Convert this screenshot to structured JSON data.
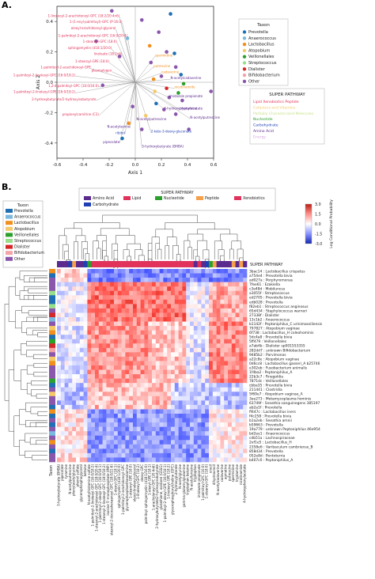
{
  "panels": {
    "a": "A.",
    "b": "B."
  },
  "chart_data": [
    {
      "type": "scatter",
      "subtype": "biplot",
      "xlabel": "Axis 1",
      "ylabel": "Axis 2",
      "xlim": [
        -0.6,
        0.6
      ],
      "ylim": [
        -0.5,
        0.5
      ],
      "xticks": [
        "-0.6",
        "-0.4",
        "-0.2",
        "0.0",
        "0.2",
        "0.4",
        "0.6"
      ],
      "yticks": [
        "0.4",
        "0.2",
        "0.0",
        "-0.2",
        "-0.4"
      ],
      "grid": false,
      "legend_taxon": {
        "title": "Taxon",
        "items": [
          {
            "label": "Prevotella",
            "color": "#1f6fb4"
          },
          {
            "label": "Anaerococcus",
            "color": "#7ab8e0"
          },
          {
            "label": "Lactobacillus",
            "color": "#f28e1c"
          },
          {
            "label": "Atopobium",
            "color": "#f5c96a"
          },
          {
            "label": "Veillonellales",
            "color": "#2ca02c"
          },
          {
            "label": "Streptococcus",
            "color": "#98df8a"
          },
          {
            "label": "Dialister",
            "color": "#d62728"
          },
          {
            "label": "Bifidobacterium",
            "color": "#f4a3a8"
          },
          {
            "label": "Other",
            "color": "#8a56ac"
          }
        ]
      },
      "legend_pathway": {
        "title": "SUPER PATHWAY",
        "items": [
          {
            "label": "Lipid Xenobiotics Peptide",
            "color": "#e0325a"
          },
          {
            "label": "Cofactors and Vitamins",
            "color": "#f5c96a"
          },
          {
            "label": "Partially Characterized Molecules",
            "color": "#c8e08a"
          },
          {
            "label": "Nucleotide",
            "color": "#2ca02c"
          },
          {
            "label": "Carbohydrate",
            "color": "#1f3fb4"
          },
          {
            "label": "Amino Acid",
            "color": "#5b2a8e"
          },
          {
            "label": "Energy",
            "color": "#d6a3e0"
          }
        ]
      },
      "points": [
        {
          "x": -0.18,
          "y": 0.47,
          "taxon": "Other"
        },
        {
          "x": 0.05,
          "y": 0.41,
          "taxon": "Other"
        },
        {
          "x": 0.27,
          "y": 0.45,
          "taxon": "Prevotella"
        },
        {
          "x": 0.18,
          "y": 0.33,
          "taxon": "Other"
        },
        {
          "x": 0.11,
          "y": 0.24,
          "taxon": "Lactobacillus"
        },
        {
          "x": 0.24,
          "y": 0.2,
          "taxon": "Other"
        },
        {
          "x": 0.3,
          "y": 0.19,
          "taxon": "Prevotella"
        },
        {
          "x": -0.06,
          "y": 0.29,
          "taxon": "Anaerococcus"
        },
        {
          "x": 0.12,
          "y": 0.13,
          "taxon": "Other"
        },
        {
          "x": 0.31,
          "y": 0.1,
          "taxon": "Other"
        },
        {
          "x": 0.35,
          "y": 0.05,
          "taxon": "Prevotella"
        },
        {
          "x": 0.2,
          "y": 0.04,
          "taxon": "Other"
        },
        {
          "x": 0.37,
          "y": -0.01,
          "taxon": "Veillonellales"
        },
        {
          "x": 0.24,
          "y": -0.04,
          "taxon": "Dialister"
        },
        {
          "x": 0.33,
          "y": -0.07,
          "taxon": "Veillonellales"
        },
        {
          "x": 0.15,
          "y": -0.06,
          "taxon": "Atopobium"
        },
        {
          "x": 0.26,
          "y": -0.1,
          "taxon": "Other"
        },
        {
          "x": 0.36,
          "y": -0.12,
          "taxon": "Other"
        },
        {
          "x": 0.16,
          "y": -0.14,
          "taxon": "Prevotella"
        },
        {
          "x": 0.22,
          "y": -0.18,
          "taxon": "Other"
        },
        {
          "x": 0.31,
          "y": -0.21,
          "taxon": "Other"
        },
        {
          "x": -0.02,
          "y": -0.16,
          "taxon": "Other"
        },
        {
          "x": 0.08,
          "y": -0.22,
          "taxon": "Atopobium"
        },
        {
          "x": -0.05,
          "y": -0.27,
          "taxon": "Lactobacillus"
        },
        {
          "x": 0.05,
          "y": -0.31,
          "taxon": "Other"
        },
        {
          "x": -0.1,
          "y": -0.37,
          "taxon": "Prevotella"
        },
        {
          "x": 0.58,
          "y": -0.06,
          "taxon": "Other"
        },
        {
          "x": 0.41,
          "y": -0.31,
          "taxon": "Other"
        },
        {
          "x": -0.3,
          "y": 0.27,
          "taxon": "Other"
        },
        {
          "x": -0.12,
          "y": 0.17,
          "taxon": "Other"
        },
        {
          "x": 0.14,
          "y": 0.02,
          "taxon": "Lactobacillus"
        },
        {
          "x": -0.25,
          "y": -0.02,
          "taxon": "Other"
        }
      ],
      "vector_labels": [
        {
          "x": -0.12,
          "y": 0.43,
          "label": "1-linoleoyl-2-arachidonoyl-GPC (18:2/20:4n6)",
          "color": "#e0325a"
        },
        {
          "x": -0.1,
          "y": 0.39,
          "label": "1-(1-enyl-palmitoyl)-GPC (P-16:0)",
          "color": "#e0325a"
        },
        {
          "x": -0.15,
          "y": 0.35,
          "label": "oleoyl-arachidonoyl-glycerol",
          "color": "#e0325a"
        },
        {
          "x": -0.06,
          "y": 0.3,
          "label": "1-palmitoyl-2-arachidonoyl-GPC (16:0/20:4)",
          "color": "#e0325a"
        },
        {
          "x": -0.14,
          "y": 0.26,
          "label": "1-stearoyl-GPC (18:0)",
          "color": "#e0325a"
        },
        {
          "x": -0.18,
          "y": 0.22,
          "label": "sphingomyelin (d18:1/20:0)",
          "color": "#e0325a"
        },
        {
          "x": -0.1,
          "y": 0.18,
          "label": "linoleate (18:2n6)",
          "color": "#e0325a"
        },
        {
          "x": -0.2,
          "y": 0.13,
          "label": "1-stearoyl-GPE (18:0)",
          "color": "#e0325a"
        },
        {
          "x": -0.34,
          "y": 0.09,
          "label": "1-palmitoyl-2-arachidonoyl-GPE",
          "color": "#e0325a"
        },
        {
          "x": -0.46,
          "y": 0.04,
          "label": "1-palmitoyl-2-linoleoyl-GPC (16:0/18:2)",
          "color": "#e0325a"
        },
        {
          "x": -0.18,
          "y": 0.07,
          "label": "plasmalogen",
          "color": "#e0325a"
        },
        {
          "x": -0.28,
          "y": -0.03,
          "label": "1,2-dipalmitoyl-GPC (16:0/16:0)",
          "color": "#e0325a"
        },
        {
          "x": -0.46,
          "y": -0.07,
          "label": "1-palmitoyl-2-linoleoyl-GPE (16:0/18:2)",
          "color": "#e0325a"
        },
        {
          "x": -0.3,
          "y": -0.12,
          "label": "2-hydroxybutyrate/2-hydroxyisobutyrate",
          "color": "#e0325a"
        },
        {
          "x": -0.28,
          "y": -0.22,
          "label": "propionylcarnitine (C3)",
          "color": "#e0325a"
        },
        {
          "x": 0.15,
          "y": 0.17,
          "label": "spermidine",
          "color": "#f28e1c"
        },
        {
          "x": 0.14,
          "y": 0.1,
          "label": "putrescine",
          "color": "#f28e1c"
        },
        {
          "x": 0.2,
          "y": 0.06,
          "label": "cadaverine",
          "color": "#f28e1c"
        },
        {
          "x": 0.27,
          "y": 0.02,
          "label": "N-acetylcadaverine",
          "color": "#5b2a8e"
        },
        {
          "x": 0.26,
          "y": -0.1,
          "label": "imidazole propionate",
          "color": "#5b2a8e"
        },
        {
          "x": 0.3,
          "y": -0.04,
          "label": "nicotinamide",
          "color": "#f28e1c"
        },
        {
          "x": 0.34,
          "y": -0.18,
          "label": "tryptamine",
          "color": "#5b2a8e"
        },
        {
          "x": 0.22,
          "y": -0.18,
          "label": "4-hydroxyphenylacetate",
          "color": "#5b2a8e"
        },
        {
          "x": 0.01,
          "y": -0.25,
          "label": "N-acetylputrescine",
          "color": "#5b2a8e"
        },
        {
          "x": -0.04,
          "y": -0.3,
          "label": "N-acetylserine",
          "color": "#5b2a8e"
        },
        {
          "x": -0.08,
          "y": -0.34,
          "label": "ribitol",
          "color": "#1f3fb4"
        },
        {
          "x": -0.12,
          "y": -0.4,
          "label": "pipecolate",
          "color": "#5b2a8e"
        },
        {
          "x": 0.05,
          "y": -0.43,
          "label": "3-hydroxybutyrate (BHBA)",
          "color": "#5b2a8e"
        },
        {
          "x": 0.42,
          "y": -0.24,
          "label": "N-acetylputrescine",
          "color": "#5b2a8e"
        },
        {
          "x": 0.12,
          "y": -0.33,
          "label": "2-keto-3-deoxy-gluconate",
          "color": "#1f3fb4"
        }
      ]
    },
    {
      "type": "heatmap",
      "super_pathway_title": "SUPER PATHWAY",
      "super_pathway_legend": [
        {
          "label": "Amino Acid",
          "color": "#5b2a8e"
        },
        {
          "label": "Carbohydrate",
          "color": "#1f3fb4"
        },
        {
          "label": "Lipid",
          "color": "#e0325a"
        },
        {
          "label": "Nucleotide",
          "color": "#2ca02c"
        },
        {
          "label": "Peptide",
          "color": "#f5a04a"
        },
        {
          "label": "Xenobiotics",
          "color": "#e0325a"
        }
      ],
      "taxon_legend": {
        "title": "Taxon",
        "items": [
          {
            "label": "Prevotella",
            "color": "#1f6fb4"
          },
          {
            "label": "Anaerococcus",
            "color": "#7ab8e0"
          },
          {
            "label": "Lactobacillus",
            "color": "#f28e1c"
          },
          {
            "label": "Atopobium",
            "color": "#f5c96a"
          },
          {
            "label": "Veillonellales",
            "color": "#2ca02c"
          },
          {
            "label": "Streptococcus",
            "color": "#98df8a"
          },
          {
            "label": "Dialister",
            "color": "#d62728"
          },
          {
            "label": "Bifidobacterium",
            "color": "#f4a3a8"
          },
          {
            "label": "Other",
            "color": "#8a56ac"
          }
        ]
      },
      "colorbar": {
        "label": "Log Conditional Probability",
        "ticks": [
          "3.0",
          "1.5",
          "0.0",
          "-1.5",
          "-3.0"
        ],
        "min": -3.0,
        "max": 3.0
      },
      "row_label_axis": "SUPER PATHWAY",
      "side_label": "Taxon",
      "rows": [
        "3bac14 : Lactobacillus crispatus",
        "a754e4 : Prevotella bivia",
        "ad027a : Porphyromonas",
        "7fee61 : Ezakiella",
        "c3e48d : Mobiluncus",
        "a3055f : Streptococcus",
        "ed2705 : Prevotella bivia",
        "edb028 : Prevotella",
        "f82eb1 : Streptococcus anginosus",
        "65d434 : Staphylococcus warneri",
        "27338f : Dialister",
        "13c1b2 : Anaerococcus",
        "b1142f : Peptoniphilus_C urinimassiliensis",
        "797827 : Atopobium vaginae",
        "6f738 : Lactobacillus_H coleohominis",
        "5dc4a8 : Prevotella bivia",
        "5ff479 : Veillonellales",
        "a7ab4b : Dialister sp001553355",
        "282dd7 : unknown Bifidobacterium",
        "9485b2 : Parvimonas",
        "a22c8e : Atopobium vaginae",
        "0d6cc8 : Lactobacillus gasseri_A b25746",
        "e302eb : Fusobacterium animalis",
        "1f4ba2 : Peptoniphilus_A",
        "22b3c7 : Finegoldia",
        "7871dc : Veillonellales",
        "cbba35 : Prevotella bivia",
        "211441 : Clostridia",
        "5f69e7 : Atopobium vaginae_A",
        "3ee273 : Metamycoplasma hominis",
        "63749f : Sneathia sanguinegens 385197",
        "ab2a1f : Prevotella",
        "ff447c : Lactobacillus iners",
        "f4c258 : Prevotella bivia",
        "b1a2eb : Sneathia amnii",
        "b59663 : Prevotella",
        "19a779 : unknown Peptoniphilus 46e954",
        "bd2ee1 : Anaerococcus",
        "cdb51a : Lachnospiraceae",
        "2ef1e5 : Lactobacillus_H",
        "2358e6 : Varibaculum cambriense_B",
        "858d34 : Prevotella",
        "052e8d : Pentoterria",
        "b407c0 : Peptoniphilus_A"
      ],
      "columns": [
        "3-hydroxybutyrate (BHBA)",
        "pipecolate",
        "tyramine",
        "N-acetylputrescine",
        "phenylacetylglycine",
        "phenol sulfate",
        "glycerophosphoglycerol",
        "betaine",
        "N-acetylhistamine sulfate",
        "1-palmitoyl-2-linoleoyl-GPC (16:0/18:2)",
        "1-stearoyl-2-arachidonoyl-GPC (18:0/20:4)",
        "1-palmitoyl-2-oleoyl-GPC (16:0/18:1)",
        "1-stearoyl-2-linoleoyl-GPC (18:0/18:2)",
        "inosine 5'-monophosphate (IMP)",
        "stearoyl-2-docosahexaenoyl-GPC (18:0/22:6)",
        "1-oleoyl-GPC (18:1)",
        "sphingomyelin (d18:1/20:0)",
        "1-palmitoyl-2-arachidonoyl-GPC",
        "glycerophosphoethanolamine",
        "1-stearoyl-GPE (18:0)",
        "oleoyl-linoleoyl-glycerol",
        "1-linoleoyl-GPC (18:2)",
        "deoxy-GPC",
        "palmitoyl sphingomyelin (d18:1/16:0)",
        "1-oleoyl-GPE (18:1)",
        "1-arachidonoyl-GPC (20:4n6)",
        "2-hydroxybutyrate/2-hydroxyisobutyrate",
        "glutathione, oxidized (GSSG)",
        "1-palmitoyl-2-oleoyl-GPE (16:0/18:1)",
        "1-linoleoyl-GPE (18:2)",
        "glycerophosphorylcholine (GPC)",
        "2-hydroxyglutarate",
        "N-acetylglycine",
        "gamma-glutamylglutamine",
        "tryptophan betaine",
        "N-acetyltyrosine",
        "tryptophan",
        "imidazole propionate",
        "1-palmitoyl-GPC (16:0)",
        "1-stearoyl-GPC (18:0)",
        "uracil",
        "dihydrouracil",
        "N-acetylcadaverine",
        "cadaverine",
        "agmatine",
        "putrescine",
        "spermidine",
        "tryptamine",
        "nicotinamide",
        "4-hydroxyphenylacetate"
      ]
    }
  ]
}
